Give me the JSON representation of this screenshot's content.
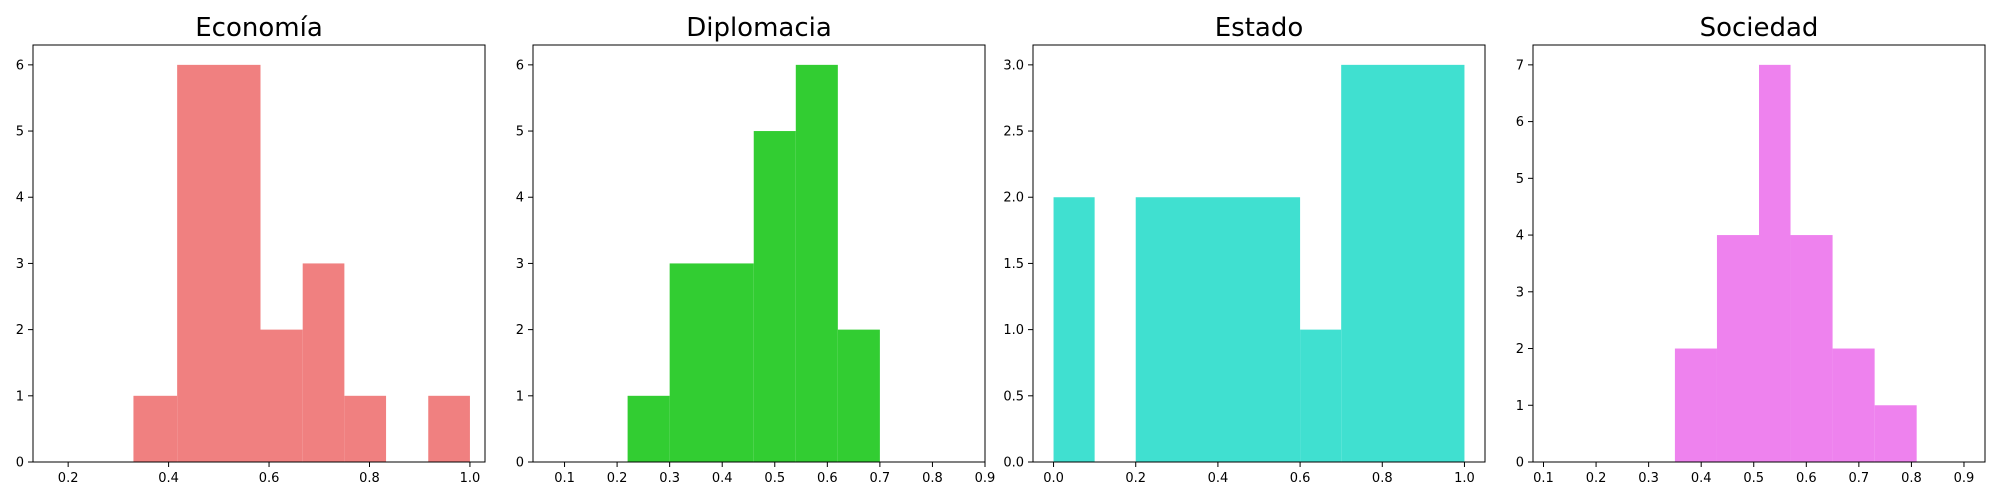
{
  "chart_data": [
    {
      "type": "bar",
      "title": "Economía",
      "color": "#f08080",
      "xlim": [
        0.13,
        1.03
      ],
      "ylim": [
        0,
        6.3
      ],
      "xticks": [
        "0.2",
        "0.4",
        "0.6",
        "0.8",
        "1.0"
      ],
      "yticks": [
        "0",
        "1",
        "2",
        "3",
        "4",
        "5",
        "6"
      ],
      "bins": [
        {
          "x0": 0.33,
          "x1": 0.417,
          "value": 1
        },
        {
          "x0": 0.417,
          "x1": 0.583,
          "value": 6
        },
        {
          "x0": 0.583,
          "x1": 0.667,
          "value": 2
        },
        {
          "x0": 0.667,
          "x1": 0.75,
          "value": 3
        },
        {
          "x0": 0.75,
          "x1": 0.833,
          "value": 1
        },
        {
          "x0": 0.917,
          "x1": 1.0,
          "value": 1
        }
      ],
      "xlabel": "",
      "ylabel": ""
    },
    {
      "type": "bar",
      "title": "Diplomacia",
      "color": "#32cd32",
      "xlim": [
        0.04,
        0.9
      ],
      "ylim": [
        0,
        6.3
      ],
      "xticks": [
        "0.1",
        "0.2",
        "0.3",
        "0.4",
        "0.5",
        "0.6",
        "0.7",
        "0.8",
        "0.9"
      ],
      "yticks": [
        "0",
        "1",
        "2",
        "3",
        "4",
        "5",
        "6"
      ],
      "bins": [
        {
          "x0": 0.22,
          "x1": 0.3,
          "value": 1
        },
        {
          "x0": 0.3,
          "x1": 0.46,
          "value": 3
        },
        {
          "x0": 0.46,
          "x1": 0.54,
          "value": 5
        },
        {
          "x0": 0.54,
          "x1": 0.62,
          "value": 6
        },
        {
          "x0": 0.62,
          "x1": 0.7,
          "value": 2
        }
      ],
      "xlabel": "",
      "ylabel": ""
    },
    {
      "type": "bar",
      "title": "Estado",
      "color": "#40e0d0",
      "xlim": [
        -0.05,
        1.05
      ],
      "ylim": [
        0,
        3.15
      ],
      "xticks": [
        "0.0",
        "0.2",
        "0.4",
        "0.6",
        "0.8",
        "1.0"
      ],
      "yticks": [
        "0.0",
        "0.5",
        "1.0",
        "1.5",
        "2.0",
        "2.5",
        "3.0"
      ],
      "bins": [
        {
          "x0": 0.0,
          "x1": 0.1,
          "value": 2
        },
        {
          "x0": 0.2,
          "x1": 0.6,
          "value": 2
        },
        {
          "x0": 0.6,
          "x1": 0.7,
          "value": 1
        },
        {
          "x0": 0.7,
          "x1": 1.0,
          "value": 3
        }
      ],
      "xlabel": "",
      "ylabel": ""
    },
    {
      "type": "bar",
      "title": "Sociedad",
      "color": "#ee82ee",
      "xlim": [
        0.08,
        0.94
      ],
      "ylim": [
        0,
        7.35
      ],
      "xticks": [
        "0.1",
        "0.2",
        "0.3",
        "0.4",
        "0.5",
        "0.6",
        "0.7",
        "0.8",
        "0.9"
      ],
      "yticks": [
        "0",
        "1",
        "2",
        "3",
        "4",
        "5",
        "6",
        "7"
      ],
      "bins": [
        {
          "x0": 0.35,
          "x1": 0.43,
          "value": 2
        },
        {
          "x0": 0.43,
          "x1": 0.51,
          "value": 4
        },
        {
          "x0": 0.51,
          "x1": 0.57,
          "value": 7
        },
        {
          "x0": 0.57,
          "x1": 0.65,
          "value": 4
        },
        {
          "x0": 0.65,
          "x1": 0.73,
          "value": 2
        },
        {
          "x0": 0.73,
          "x1": 0.81,
          "value": 1
        }
      ],
      "xlabel": "",
      "ylabel": ""
    }
  ]
}
